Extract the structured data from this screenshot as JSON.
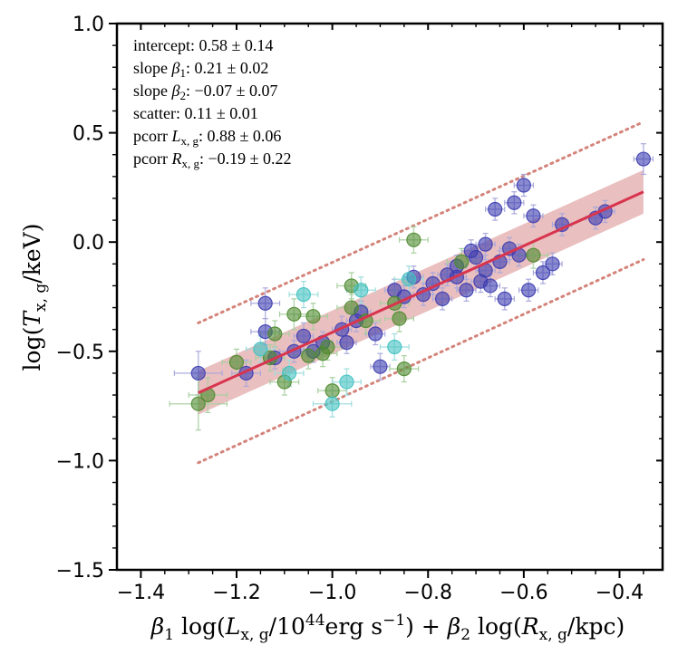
{
  "chart_data": {
    "type": "scatter",
    "title": "",
    "xlabel": "β1 log(Lx,g/10^44 erg s^-1) + β2 log(Rx,g/kpc)",
    "ylabel": "log(Tx,g/keV)",
    "xlim": [
      -1.45,
      -0.31
    ],
    "ylim": [
      -1.5,
      1.0
    ],
    "grid": false,
    "x_ticks": [
      -1.4,
      -1.2,
      -1.0,
      -0.8,
      -0.6,
      -0.4
    ],
    "x_tick_labels": [
      "−1.4",
      "−1.2",
      "−1.0",
      "−0.8",
      "−0.6",
      "−0.4"
    ],
    "y_ticks": [
      -1.5,
      -1.0,
      -0.5,
      0.0,
      0.5,
      1.0
    ],
    "y_tick_labels": [
      "−1.5",
      "−1.0",
      "−0.5",
      "0.0",
      "0.5",
      "1.0"
    ],
    "xlabel_parts": {
      "b1": "β",
      "b1_sub": "1",
      "log1": " log(",
      "L": "L",
      "L_sub": "x, g",
      "mid": "/10",
      "exp44": "44",
      "erg": "erg s",
      "exp_neg1": "−1",
      "close_plus": ") + ",
      "b2": "β",
      "b2_sub": "2",
      "log2": " log(",
      "R": "R",
      "R_sub": "x, g",
      "tail": "/kpc)"
    },
    "ylabel_parts": {
      "log": "log(",
      "T": "T",
      "T_sub": "x, g",
      "tail": "/keV)"
    },
    "annotations": [
      {
        "label": "intercept",
        "sym": "",
        "sub": "",
        "value": "0.58 ± 0.14"
      },
      {
        "label": "slope ",
        "sym": "β",
        "sub": "1",
        "value": "0.21 ± 0.02"
      },
      {
        "label": "slope ",
        "sym": "β",
        "sub": "2",
        "value": "−0.07 ± 0.07"
      },
      {
        "label": "scatter",
        "sym": "",
        "sub": "",
        "value": "0.11 ± 0.01"
      },
      {
        "label": "pcorr ",
        "sym": "L",
        "sub": "x, g",
        "value": "0.88 ± 0.06"
      },
      {
        "label": "pcorr ",
        "sym": "R",
        "sub": "x, g",
        "value": "−0.19 ± 0.22"
      }
    ],
    "fit": {
      "x": [
        -1.28,
        -0.35
      ],
      "y": [
        -0.69,
        0.23
      ],
      "band_lower": [
        -0.79,
        0.13
      ],
      "band_upper": [
        -0.59,
        0.33
      ],
      "outer_lower": [
        -1.01,
        -0.08
      ],
      "outer_upper": [
        -0.37,
        0.55
      ]
    },
    "colors": {
      "navy": "#3c3cb0",
      "green": "#4e8a2e",
      "cyan": "#42c2c2",
      "fit_line": "#d8344e",
      "band": "#d98a8a",
      "dotted": "#d4837a",
      "err_navy": "#a9a9dc",
      "err_green": "#a8cfa0",
      "err_cyan": "#9fdcdc"
    },
    "series": [
      {
        "name": "navy",
        "points": [
          [
            -1.28,
            -0.6,
            0.05,
            0.1
          ],
          [
            -1.18,
            -0.6,
            0.03,
            0.06
          ],
          [
            -1.14,
            -0.28,
            0.03,
            0.07
          ],
          [
            -1.14,
            -0.41,
            0.03,
            0.06
          ],
          [
            -1.12,
            -0.53,
            0.02,
            0.05
          ],
          [
            -1.08,
            -0.5,
            0.03,
            0.05
          ],
          [
            -1.06,
            -0.43,
            0.02,
            0.06
          ],
          [
            -1.04,
            -0.5,
            0.02,
            0.05
          ],
          [
            -1.02,
            -0.46,
            0.02,
            0.05
          ],
          [
            -0.98,
            -0.4,
            0.02,
            0.06
          ],
          [
            -0.97,
            -0.46,
            0.02,
            0.05
          ],
          [
            -0.95,
            -0.36,
            0.02,
            0.05
          ],
          [
            -0.94,
            -0.32,
            0.02,
            0.05
          ],
          [
            -0.91,
            -0.42,
            0.02,
            0.05
          ],
          [
            -0.9,
            -0.57,
            0.02,
            0.06
          ],
          [
            -0.87,
            -0.22,
            0.02,
            0.05
          ],
          [
            -0.85,
            -0.25,
            0.02,
            0.05
          ],
          [
            -0.83,
            -0.16,
            0.02,
            0.05
          ],
          [
            -0.81,
            -0.24,
            0.02,
            0.05
          ],
          [
            -0.79,
            -0.19,
            0.02,
            0.05
          ],
          [
            -0.77,
            -0.26,
            0.02,
            0.05
          ],
          [
            -0.76,
            -0.15,
            0.02,
            0.05
          ],
          [
            -0.74,
            -0.11,
            0.02,
            0.05
          ],
          [
            -0.72,
            -0.22,
            0.02,
            0.05
          ],
          [
            -0.71,
            -0.04,
            0.02,
            0.05
          ],
          [
            -0.7,
            -0.07,
            0.02,
            0.05
          ],
          [
            -0.69,
            -0.18,
            0.02,
            0.05
          ],
          [
            -0.68,
            -0.01,
            0.02,
            0.05
          ],
          [
            -0.67,
            -0.2,
            0.02,
            0.05
          ],
          [
            -0.66,
            0.15,
            0.02,
            0.05
          ],
          [
            -0.65,
            -0.09,
            0.02,
            0.05
          ],
          [
            -0.64,
            -0.26,
            0.02,
            0.05
          ],
          [
            -0.62,
            0.18,
            0.02,
            0.05
          ],
          [
            -0.61,
            -0.06,
            0.02,
            0.05
          ],
          [
            -0.6,
            0.26,
            0.02,
            0.05
          ],
          [
            -0.59,
            -0.22,
            0.02,
            0.05
          ],
          [
            -0.58,
            0.12,
            0.02,
            0.05
          ],
          [
            -0.56,
            -0.14,
            0.02,
            0.05
          ],
          [
            -0.54,
            -0.1,
            0.02,
            0.05
          ],
          [
            -0.52,
            0.08,
            0.02,
            0.05
          ],
          [
            -0.45,
            0.11,
            0.02,
            0.05
          ],
          [
            -0.43,
            0.14,
            0.02,
            0.05
          ],
          [
            -0.35,
            0.38,
            0.02,
            0.07
          ],
          [
            -0.63,
            -0.03,
            0.02,
            0.05
          ],
          [
            -0.74,
            -0.16,
            0.02,
            0.05
          ],
          [
            -0.68,
            -0.13,
            0.02,
            0.05
          ]
        ]
      },
      {
        "name": "green",
        "points": [
          [
            -1.28,
            -0.74,
            0.06,
            0.12
          ],
          [
            -1.26,
            -0.7,
            0.04,
            0.08
          ],
          [
            -1.2,
            -0.55,
            0.03,
            0.06
          ],
          [
            -1.13,
            -0.53,
            0.03,
            0.06
          ],
          [
            -1.1,
            -0.64,
            0.03,
            0.06
          ],
          [
            -1.08,
            -0.33,
            0.03,
            0.07
          ],
          [
            -1.04,
            -0.34,
            0.03,
            0.06
          ],
          [
            -1.02,
            -0.51,
            0.03,
            0.06
          ],
          [
            -1.01,
            -0.48,
            0.03,
            0.06
          ],
          [
            -1.0,
            -0.68,
            0.03,
            0.06
          ],
          [
            -0.96,
            -0.2,
            0.03,
            0.06
          ],
          [
            -0.96,
            -0.3,
            0.03,
            0.06
          ],
          [
            -0.87,
            -0.28,
            0.03,
            0.06
          ],
          [
            -0.86,
            -0.35,
            0.03,
            0.06
          ],
          [
            -0.85,
            -0.58,
            0.03,
            0.06
          ],
          [
            -0.83,
            0.01,
            0.03,
            0.06
          ],
          [
            -0.73,
            -0.09,
            0.03,
            0.06
          ],
          [
            -0.58,
            -0.06,
            0.03,
            0.06
          ],
          [
            -1.12,
            -0.42,
            0.03,
            0.06
          ],
          [
            -1.05,
            -0.52,
            0.03,
            0.06
          ],
          [
            -0.93,
            -0.36,
            0.03,
            0.06
          ]
        ]
      },
      {
        "name": "cyan",
        "points": [
          [
            -1.15,
            -0.49,
            0.03,
            0.06
          ],
          [
            -1.09,
            -0.6,
            0.03,
            0.06
          ],
          [
            -1.06,
            -0.24,
            0.03,
            0.06
          ],
          [
            -1.0,
            -0.74,
            0.04,
            0.06
          ],
          [
            -0.97,
            -0.64,
            0.03,
            0.06
          ],
          [
            -0.94,
            -0.22,
            0.03,
            0.06
          ],
          [
            -0.87,
            -0.48,
            0.03,
            0.06
          ],
          [
            -0.84,
            -0.17,
            0.03,
            0.06
          ]
        ]
      }
    ]
  }
}
